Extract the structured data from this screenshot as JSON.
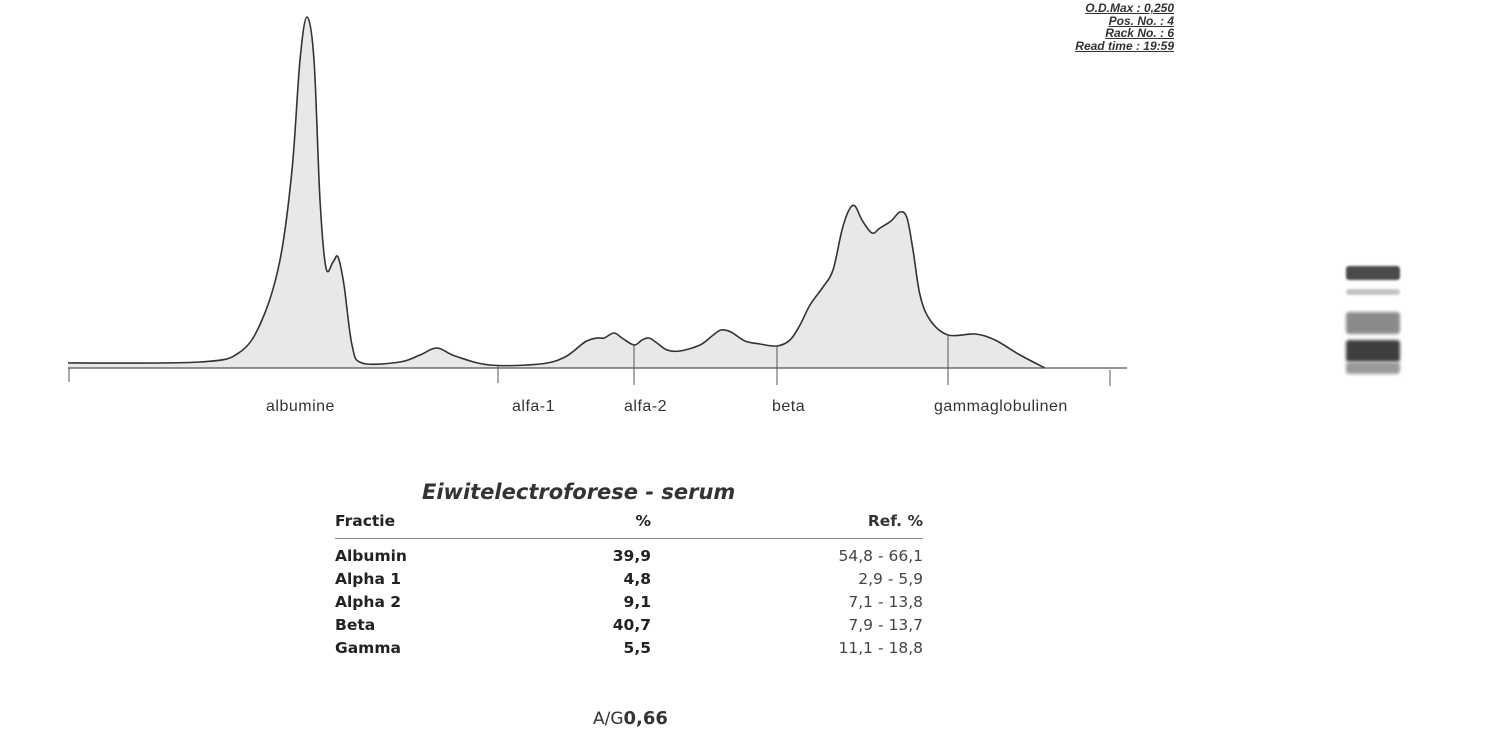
{
  "header": {
    "od_max": "O.D.Max : 0,250",
    "pos_no": "Pos. No.   : 4",
    "rack_no": "Rack No.  : 6",
    "read_time": "Read time : 19:59"
  },
  "chart_data": {
    "type": "area",
    "title": "",
    "fraction_labels": [
      "albumine",
      "alfa-1",
      "alfa-2",
      "beta",
      "gammaglobulinen"
    ],
    "fill_color": "#e8e8e8",
    "line_color": "#333333",
    "grid": false
  },
  "results": {
    "title": "Eiwitelectroforese - serum",
    "columns": [
      "Fractie",
      "%",
      "Ref. %"
    ],
    "rows": [
      {
        "fraction": "Albumin",
        "percent": "39,9",
        "ref": "54,8 - 66,1"
      },
      {
        "fraction": "Alpha 1",
        "percent": "4,8",
        "ref": "2,9 -  5,9"
      },
      {
        "fraction": "Alpha 2",
        "percent": "9,1",
        "ref": "7,1 - 13,8"
      },
      {
        "fraction": "Beta",
        "percent": "40,7",
        "ref": "7,9 - 13,7"
      },
      {
        "fraction": "Gamma",
        "percent": "5,5",
        "ref": "11,1 - 18,8"
      }
    ],
    "ag_label": "A/G",
    "ag_value": "0,66"
  }
}
